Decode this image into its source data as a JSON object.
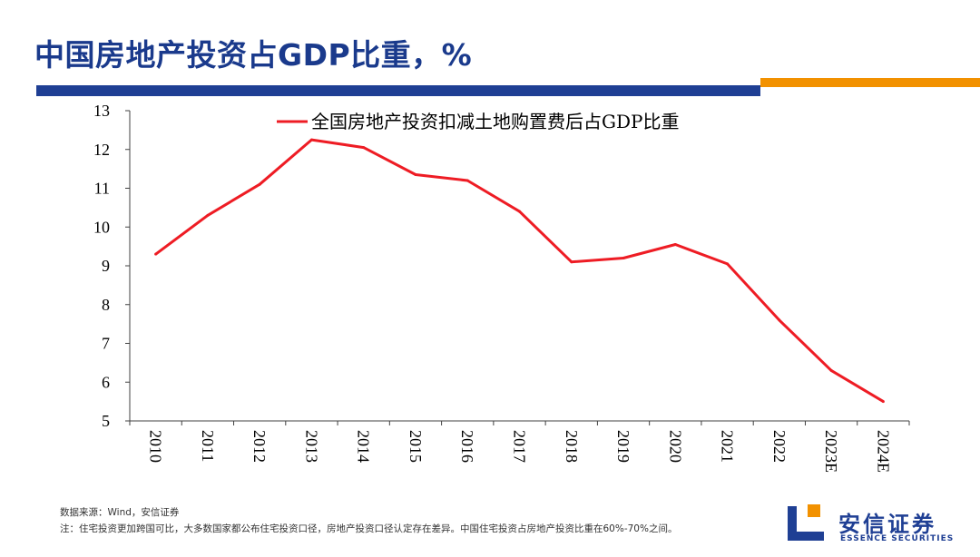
{
  "page": {
    "title": "中国房地产投资占GDP比重，%",
    "source": "数据来源：Wind，安信证券",
    "note": "注：住宅投资更加跨国可比，大多数国家都公布住宅投资口径，房地产投资口径认定存在差异。中国住宅投资占房地产投资比重在60%-70%之间。",
    "logo_cn": "安信证券",
    "logo_en": "ESSENCE SECURITIES"
  },
  "colors": {
    "brand_blue": "#1f3f94",
    "brand_orange": "#f29100",
    "series": "#ee1c24"
  },
  "chart_data": {
    "type": "line",
    "title": "",
    "xlabel": "",
    "ylabel": "",
    "categories": [
      "2010",
      "2011",
      "2012",
      "2013",
      "2014",
      "2015",
      "2016",
      "2017",
      "2018",
      "2019",
      "2020",
      "2021",
      "2022",
      "2023E",
      "2024E"
    ],
    "ylim": [
      5,
      13
    ],
    "yticks": [
      5,
      6,
      7,
      8,
      9,
      10,
      11,
      12,
      13
    ],
    "grid": false,
    "legend_position": "top",
    "series": [
      {
        "name": "全国房地产投资扣减土地购置费后占GDP比重",
        "values": [
          9.3,
          10.3,
          11.1,
          12.25,
          12.05,
          11.35,
          11.2,
          10.4,
          9.1,
          9.2,
          9.55,
          9.05,
          7.6,
          6.3,
          5.5
        ]
      }
    ]
  }
}
